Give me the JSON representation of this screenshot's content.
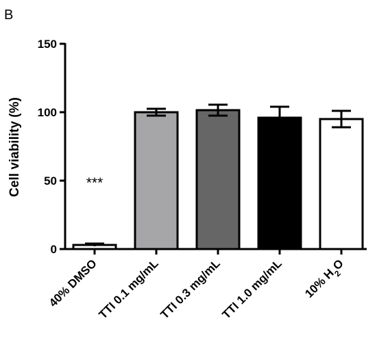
{
  "panel_label": "B",
  "chart_data": {
    "type": "bar",
    "title": "",
    "xlabel": "",
    "ylabel": "Cell viability (%)",
    "ylim": [
      0,
      150
    ],
    "yticks": [
      0,
      50,
      100,
      150
    ],
    "categories": [
      "40% DMSO",
      "TTI 0.1 mg/mL",
      "TTI 0.3 mg/mL",
      "TTI 1.0 mg/mL",
      "10% H2O"
    ],
    "values": [
      3,
      100,
      101.5,
      96,
      95
    ],
    "errors": [
      1,
      2.5,
      4,
      8,
      6
    ],
    "bar_colors": [
      "#ffffff",
      "#a6a6a8",
      "#666666",
      "#000000",
      "#ffffff"
    ],
    "annotations": [
      {
        "category": "40% DMSO",
        "text": "***"
      }
    ],
    "grid": false,
    "legend": "none"
  }
}
